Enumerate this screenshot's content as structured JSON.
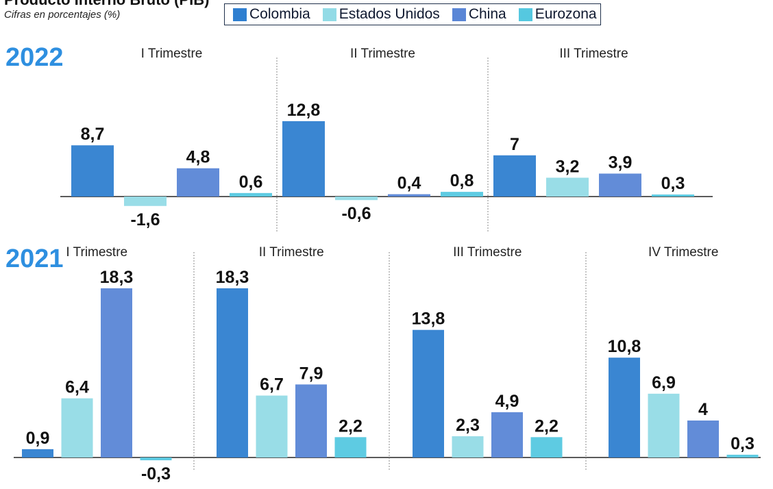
{
  "header": {
    "title": "Producto Interno Bruto (PIB)",
    "subtitle": "Cifras en porcentajes (%)"
  },
  "colors": {
    "Colombia": "#2f7fd0",
    "Estados Unidos": "#93dbe6",
    "China": "#5a86d6",
    "Eurozona": "#55c8e0",
    "year_text": "#2e8fe0",
    "axis": "#222222",
    "divider": "#888888"
  },
  "chart_data": [
    {
      "type": "bar",
      "year": "2022",
      "period": "I Trimestre",
      "categories": [
        "Colombia",
        "Estados Unidos",
        "China",
        "Eurozona"
      ],
      "values": [
        8.7,
        -1.6,
        4.8,
        0.6
      ],
      "value_labels": [
        "8,7",
        "-1,6",
        "4,8",
        "0,6"
      ]
    },
    {
      "type": "bar",
      "year": "2022",
      "period": "II Trimestre",
      "categories": [
        "Colombia",
        "Estados Unidos",
        "China",
        "Eurozona"
      ],
      "values": [
        12.8,
        -0.6,
        0.4,
        0.8
      ],
      "value_labels": [
        "12,8",
        "-0,6",
        "0,4",
        "0,8"
      ]
    },
    {
      "type": "bar",
      "year": "2022",
      "period": "III Trimestre",
      "categories": [
        "Colombia",
        "Estados Unidos",
        "China",
        "Eurozona"
      ],
      "values": [
        7,
        3.2,
        3.9,
        0.3
      ],
      "value_labels": [
        "7",
        "3,2",
        "3,9",
        "0,3"
      ]
    },
    {
      "type": "bar",
      "year": "2021",
      "period": "I Trimestre",
      "categories": [
        "Colombia",
        "Estados Unidos",
        "China",
        "Eurozona"
      ],
      "values": [
        0.9,
        6.4,
        18.3,
        -0.3
      ],
      "value_labels": [
        "0,9",
        "6,4",
        "18,3",
        "-0,3"
      ]
    },
    {
      "type": "bar",
      "year": "2021",
      "period": "II Trimestre",
      "categories": [
        "Colombia",
        "Estados Unidos",
        "China",
        "Eurozona"
      ],
      "values": [
        18.3,
        6.7,
        7.9,
        2.2
      ],
      "value_labels": [
        "18,3",
        "6,7",
        "7,9",
        "2,2"
      ]
    },
    {
      "type": "bar",
      "year": "2021",
      "period": "III Trimestre",
      "categories": [
        "Colombia",
        "Estados Unidos",
        "China",
        "Eurozona"
      ],
      "values": [
        13.8,
        2.3,
        4.9,
        2.2
      ],
      "value_labels": [
        "13,8",
        "2,3",
        "4,9",
        "2,2"
      ]
    },
    {
      "type": "bar",
      "year": "2021",
      "period": "IV Trimestre",
      "categories": [
        "Colombia",
        "Estados Unidos",
        "China",
        "Eurozona"
      ],
      "values": [
        10.8,
        6.9,
        4,
        0.3
      ],
      "value_labels": [
        "10,8",
        "6,9",
        "4",
        "0,3"
      ]
    }
  ],
  "rows": [
    {
      "year": "2022"
    },
    {
      "year": "2021"
    }
  ]
}
